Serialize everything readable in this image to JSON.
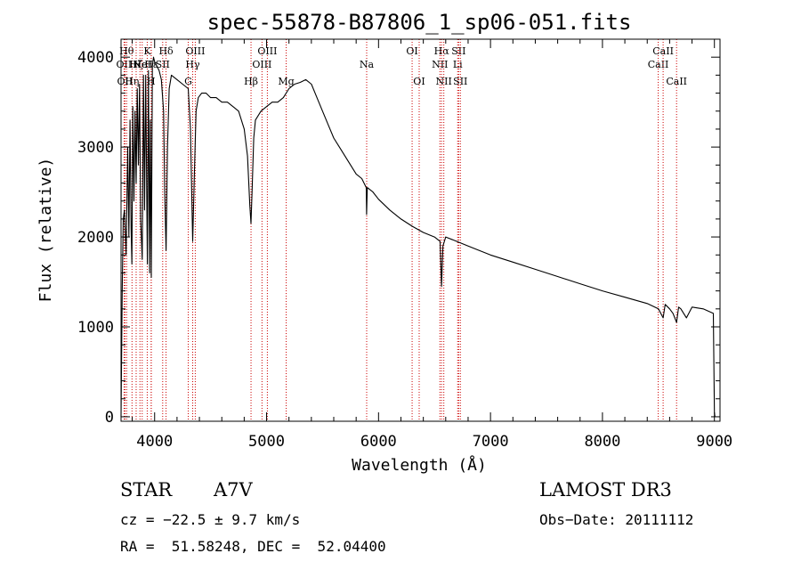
{
  "chart_data": {
    "type": "line",
    "title": "spec-55878-B87806_1_sp06-051.fits",
    "xlabel": "Wavelength (Å)",
    "ylabel": "Flux (relative)",
    "xlim": [
      3700,
      9050
    ],
    "ylim": [
      -50,
      4200
    ],
    "x_ticks": [
      4000,
      5000,
      6000,
      7000,
      8000,
      9000
    ],
    "y_ticks": [
      0,
      1000,
      2000,
      3000,
      4000
    ],
    "series": [
      {
        "name": "spectrum",
        "x": [
          3700,
          3710,
          3720,
          3730,
          3745,
          3760,
          3770,
          3780,
          3790,
          3797,
          3805,
          3815,
          3825,
          3835,
          3845,
          3855,
          3865,
          3875,
          3889,
          3900,
          3910,
          3920,
          3935,
          3945,
          3955,
          3962,
          3970,
          3980,
          3990,
          4000,
          4020,
          4040,
          4060,
          4080,
          4090,
          4102,
          4115,
          4130,
          4150,
          4200,
          4250,
          4300,
          4320,
          4340,
          4355,
          4370,
          4390,
          4420,
          4460,
          4500,
          4550,
          4600,
          4650,
          4700,
          4750,
          4800,
          4830,
          4850,
          4861,
          4870,
          4885,
          4900,
          4950,
          5000,
          5050,
          5100,
          5150,
          5200,
          5250,
          5300,
          5350,
          5400,
          5450,
          5500,
          5550,
          5600,
          5650,
          5700,
          5750,
          5800,
          5850,
          5890,
          5893,
          5900,
          5950,
          6000,
          6100,
          6200,
          6300,
          6400,
          6500,
          6550,
          6563,
          6575,
          6600,
          6700,
          6800,
          6900,
          7000,
          7200,
          7400,
          7600,
          7800,
          8000,
          8200,
          8400,
          8500,
          8542,
          8560,
          8600,
          8630,
          8662,
          8680,
          8700,
          8750,
          8800,
          8900,
          8990,
          8995,
          9000,
          9005
        ],
        "values": [
          0,
          1400,
          2200,
          2300,
          1800,
          3000,
          2000,
          3300,
          2100,
          1700,
          3450,
          2400,
          3400,
          2600,
          3650,
          2800,
          3700,
          2200,
          1750,
          3800,
          2300,
          3800,
          1700,
          3850,
          1600,
          3300,
          1550,
          3900,
          4000,
          3950,
          3900,
          3850,
          3750,
          3400,
          2500,
          1850,
          3000,
          3650,
          3800,
          3750,
          3700,
          3650,
          3200,
          1950,
          2700,
          3400,
          3550,
          3600,
          3600,
          3550,
          3550,
          3500,
          3500,
          3450,
          3400,
          3200,
          2900,
          2350,
          2150,
          2500,
          3100,
          3300,
          3400,
          3450,
          3500,
          3500,
          3550,
          3650,
          3700,
          3720,
          3750,
          3700,
          3550,
          3400,
          3250,
          3100,
          3000,
          2900,
          2800,
          2700,
          2650,
          2550,
          2250,
          2550,
          2500,
          2420,
          2300,
          2200,
          2120,
          2050,
          2000,
          1950,
          1450,
          1900,
          2000,
          1950,
          1900,
          1850,
          1800,
          1720,
          1640,
          1560,
          1480,
          1400,
          1330,
          1260,
          1200,
          1100,
          1250,
          1200,
          1150,
          1050,
          1220,
          1200,
          1100,
          1220,
          1200,
          1150,
          600,
          50,
          0
        ]
      }
    ],
    "line_markers": [
      {
        "wavelength": 3727,
        "label": "OII",
        "row": 2
      },
      {
        "wavelength": 3735,
        "label": "OII",
        "row": 3
      },
      {
        "wavelength": 3750,
        "label": "Hθ",
        "row": 1
      },
      {
        "wavelength": 3798,
        "label": "Hη",
        "row": 3
      },
      {
        "wavelength": 3835,
        "label": "Hζ",
        "row": 2
      },
      {
        "wavelength": 3869,
        "label": "Ne",
        "row": 2
      },
      {
        "wavelength": 3889,
        "label": "HeI",
        "row": 2
      },
      {
        "wavelength": 3934,
        "label": "K",
        "row": 1
      },
      {
        "wavelength": 3969,
        "label": "H",
        "row": 3
      },
      {
        "wavelength": 3970,
        "label": "Hε",
        "row": 2
      },
      {
        "wavelength": 4072,
        "label": "SII",
        "row": 2
      },
      {
        "wavelength": 4102,
        "label": "Hδ",
        "row": 1
      },
      {
        "wavelength": 4300,
        "label": "G",
        "row": 3
      },
      {
        "wavelength": 4340,
        "label": "Hγ",
        "row": 2
      },
      {
        "wavelength": 4363,
        "label": "OIII",
        "row": 1
      },
      {
        "wavelength": 4861,
        "label": "Hβ",
        "row": 3
      },
      {
        "wavelength": 4959,
        "label": "OIII",
        "row": 2
      },
      {
        "wavelength": 5007,
        "label": "OIII",
        "row": 1
      },
      {
        "wavelength": 5175,
        "label": "Mg",
        "row": 3
      },
      {
        "wavelength": 5894,
        "label": "Na",
        "row": 2
      },
      {
        "wavelength": 6300,
        "label": "OI",
        "row": 1
      },
      {
        "wavelength": 6363,
        "label": "OI",
        "row": 3
      },
      {
        "wavelength": 6548,
        "label": "NII",
        "row": 2
      },
      {
        "wavelength": 6563,
        "label": "Hα",
        "row": 1
      },
      {
        "wavelength": 6583,
        "label": "NII",
        "row": 3
      },
      {
        "wavelength": 6707,
        "label": "Li",
        "row": 2
      },
      {
        "wavelength": 6716,
        "label": "SII",
        "row": 1
      },
      {
        "wavelength": 6731,
        "label": "SII",
        "row": 3
      },
      {
        "wavelength": 8498,
        "label": "CaII",
        "row": 2
      },
      {
        "wavelength": 8542,
        "label": "CaII",
        "row": 1
      },
      {
        "wavelength": 8662,
        "label": "CaII",
        "row": 3
      }
    ]
  },
  "footer": {
    "object_type": "STAR",
    "subclass": "A7V",
    "survey": "LAMOST DR3",
    "cz": "cz = −22.5 ± 9.7 km/s",
    "obs_date": "Obs−Date: 20111112",
    "radec": "RA =  51.58248, DEC =  52.04400"
  },
  "colors": {
    "spectrum": "#000000",
    "marker": "#cc0000",
    "axes": "#000000"
  }
}
